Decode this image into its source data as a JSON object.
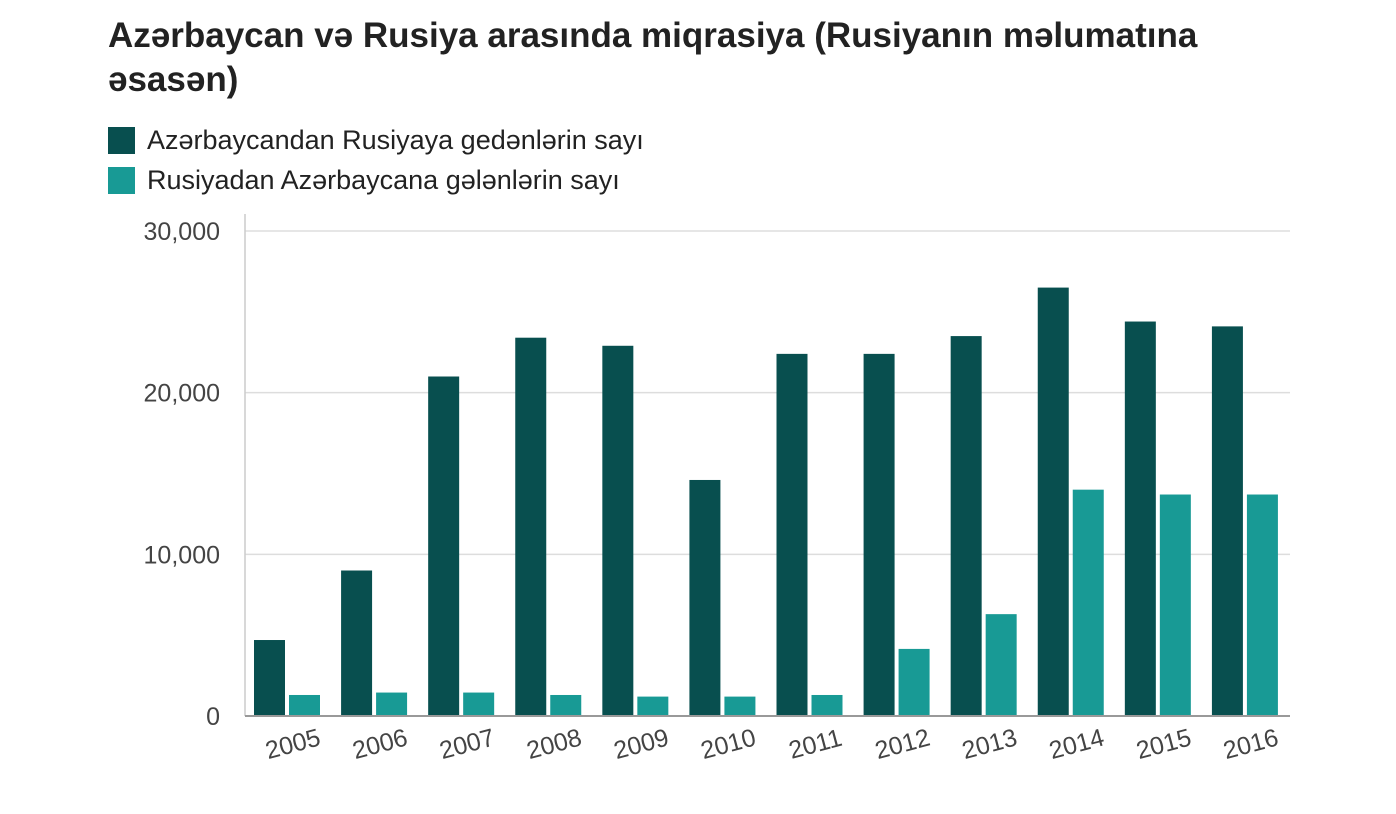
{
  "chart_data": {
    "type": "bar",
    "title": "Azərbaycan və Rusiya arasında miqrasiya (Rusiyanın məlumatına əsasən)",
    "xlabel": "",
    "ylabel": "",
    "ylim": [
      0,
      30000
    ],
    "yticks": [
      {
        "value": 0,
        "label": "0"
      },
      {
        "value": 10000,
        "label": "10,000"
      },
      {
        "value": 20000,
        "label": "20,000"
      },
      {
        "value": 30000,
        "label": "30,000"
      }
    ],
    "grid": true,
    "legend_position": "top-left",
    "categories": [
      "2005",
      "2006",
      "2007",
      "2008",
      "2009",
      "2010",
      "2011",
      "2012",
      "2013",
      "2014",
      "2015",
      "2016"
    ],
    "series": [
      {
        "name": "Azərbaycandan Rusiyaya gedənlərin sayı",
        "color": "#084f4f",
        "values": [
          4700,
          9000,
          21000,
          23400,
          22900,
          14600,
          22400,
          22400,
          23500,
          26500,
          24400,
          24100
        ]
      },
      {
        "name": "Rusiyadan Azərbaycana gələnlərin sayı",
        "color": "#189a95",
        "values": [
          1300,
          1450,
          1450,
          1300,
          1200,
          1200,
          1300,
          4150,
          6300,
          14000,
          13700,
          13700
        ]
      }
    ]
  }
}
